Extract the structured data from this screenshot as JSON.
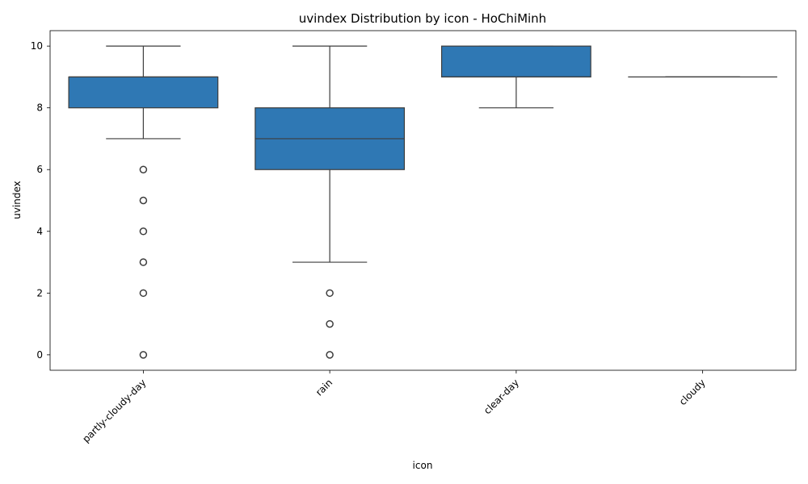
{
  "chart_data": {
    "type": "box",
    "title": "uvindex Distribution by icon - HoChiMinh",
    "xlabel": "icon",
    "ylabel": "uvindex",
    "ylim": [
      -0.5,
      10.5
    ],
    "yticks": [
      0,
      2,
      4,
      6,
      8,
      10
    ],
    "box_color": "#2f78b4",
    "line_color": "#3d3d3d",
    "grid": false,
    "categories": [
      "partly-cloudy-day",
      "rain",
      "clear-day",
      "cloudy"
    ],
    "boxes": [
      {
        "label": "partly-cloudy-day",
        "whisker_low": 7,
        "q1": 8,
        "median": 9,
        "q3": 9,
        "whisker_high": 10,
        "outliers": [
          6,
          5,
          4,
          3,
          2,
          0
        ]
      },
      {
        "label": "rain",
        "whisker_low": 3,
        "q1": 6,
        "median": 7,
        "q3": 8,
        "whisker_high": 10,
        "outliers": [
          2,
          1,
          0
        ]
      },
      {
        "label": "clear-day",
        "whisker_low": 8,
        "q1": 9,
        "median": 9,
        "q3": 10,
        "whisker_high": 10,
        "outliers": []
      },
      {
        "label": "cloudy",
        "whisker_low": 9,
        "q1": 9,
        "median": 9,
        "q3": 9,
        "whisker_high": 9,
        "outliers": []
      }
    ]
  }
}
